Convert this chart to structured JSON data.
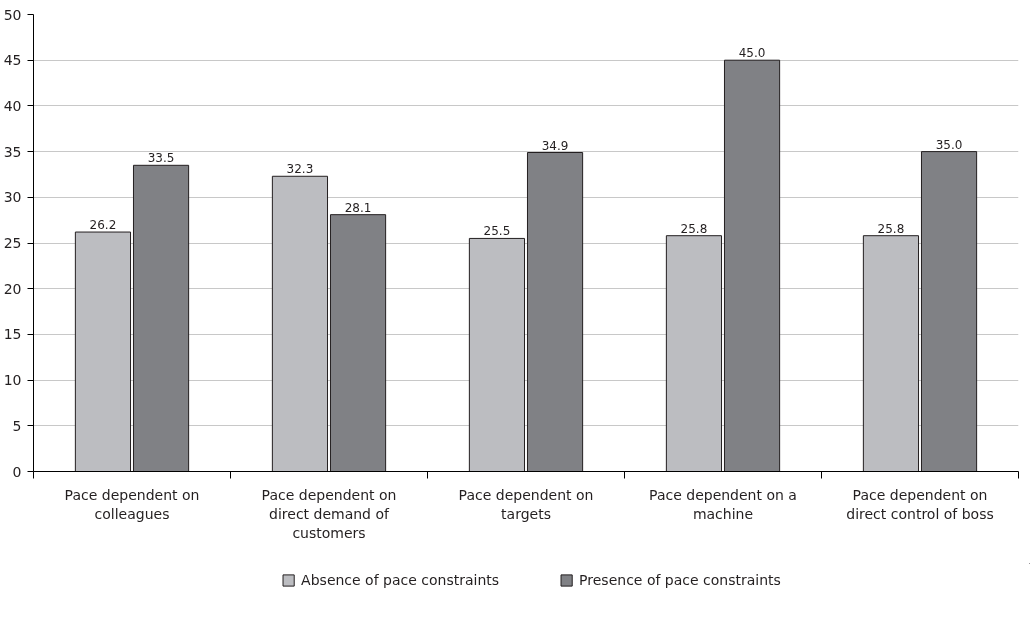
{
  "chart_data": {
    "type": "bar",
    "categories": [
      "Pace dependent on colleagues",
      "Pace dependent on direct demand of customers",
      "Pace dependent on targets",
      "Pace dependent on a machine",
      "Pace dependent on direct control of boss"
    ],
    "series": [
      {
        "name": "Absence of pace constraints",
        "color": "#bcbdc1",
        "values": [
          26.2,
          32.3,
          25.5,
          25.8,
          25.8
        ],
        "value_labels": [
          "26.2",
          "32.3",
          "25.5",
          "25.8",
          "25.8"
        ]
      },
      {
        "name": "Presence of pace constraints",
        "color": "#808185",
        "values": [
          33.5,
          28.1,
          34.9,
          45.0,
          35.0
        ],
        "value_labels": [
          "33.5",
          "28.1",
          "34.9",
          "45.0",
          "35.0"
        ]
      }
    ],
    "ylim": [
      0,
      50
    ],
    "yticks": [
      0,
      5,
      10,
      15,
      20,
      25,
      30,
      35,
      40,
      45,
      50
    ],
    "grid": "y",
    "legend": "bottom"
  }
}
